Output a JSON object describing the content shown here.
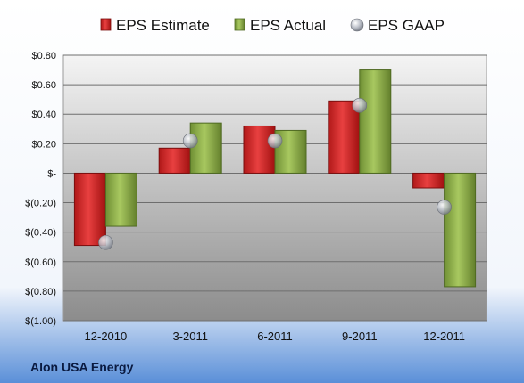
{
  "chart_data": {
    "type": "bar",
    "categories": [
      "12-2010",
      "3-2011",
      "6-2011",
      "9-2011",
      "12-2011"
    ],
    "series": [
      {
        "name": "EPS Estimate",
        "values": [
          -0.49,
          0.17,
          0.32,
          0.49,
          -0.1
        ],
        "color": "#d42424",
        "marker": "bar"
      },
      {
        "name": "EPS Actual",
        "values": [
          -0.36,
          0.34,
          0.29,
          0.7,
          -0.77
        ],
        "color": "#8fb04a",
        "marker": "bar"
      },
      {
        "name": "EPS GAAP",
        "values": [
          -0.47,
          0.22,
          0.22,
          0.46,
          -0.23
        ],
        "color": "#b8bcc4",
        "marker": "sphere"
      }
    ],
    "yticks": [
      "$(1.00)",
      "$(0.80)",
      "$(0.60)",
      "$(0.40)",
      "$(0.20)",
      "$-",
      "$0.20",
      "$0.40",
      "$0.60",
      "$0.80"
    ],
    "ylim": [
      -1.0,
      0.8
    ],
    "grid": true,
    "legend_position": "top",
    "footer": "Alon USA Energy"
  }
}
